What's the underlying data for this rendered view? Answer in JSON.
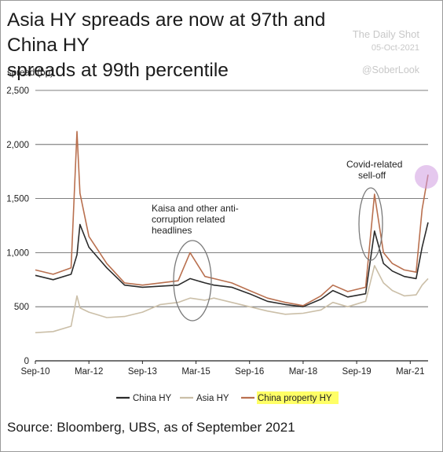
{
  "header": {
    "title_line1": "Asia HY spreads are now at 97th and China HY",
    "title_line2": "spreads at 99th percentile"
  },
  "watermark": {
    "line1": "The Daily Shot",
    "line2": "05-Oct-2021",
    "line3": "@SoberLook"
  },
  "footer": {
    "source": "Source: Bloomberg, UBS, as of September 2021"
  },
  "chart_data": {
    "type": "line",
    "ylabel": "spread (bp)",
    "ylim": [
      0,
      2500
    ],
    "y_ticks": [
      "0",
      "500",
      "1,000",
      "1,500",
      "2,000",
      "2,500"
    ],
    "y_tick_values": [
      0,
      500,
      1000,
      1500,
      2000,
      2500
    ],
    "x_tick_labels": [
      "Sep-10",
      "Mar-12",
      "Sep-13",
      "Mar-15",
      "Sep-16",
      "Mar-18",
      "Sep-19",
      "Mar-21"
    ],
    "grid": true,
    "legend_position": "bottom",
    "annotations": [
      {
        "lines": [
          "Kaisa and other anti-",
          "corruption related",
          "headlines"
        ]
      },
      {
        "lines": [
          "Covid-related",
          "sell-off"
        ]
      }
    ],
    "series": [
      {
        "name": "China HY",
        "color": "#2b2b2b",
        "x": [
          "2010-09",
          "2011-03",
          "2011-09",
          "2011-11",
          "2011-12",
          "2012-03",
          "2012-09",
          "2013-03",
          "2013-09",
          "2014-03",
          "2014-09",
          "2015-01",
          "2015-06",
          "2015-09",
          "2016-03",
          "2016-09",
          "2017-03",
          "2017-09",
          "2018-03",
          "2018-09",
          "2019-01",
          "2019-06",
          "2019-12",
          "2020-03",
          "2020-06",
          "2020-09",
          "2021-01",
          "2021-05",
          "2021-07",
          "2021-09"
        ],
        "values": [
          790,
          750,
          800,
          980,
          1260,
          1050,
          860,
          700,
          680,
          690,
          700,
          760,
          720,
          700,
          680,
          620,
          550,
          520,
          500,
          570,
          650,
          590,
          620,
          1200,
          900,
          830,
          780,
          760,
          1050,
          1280
        ]
      },
      {
        "name": "Asia HY",
        "color": "#cbbfa8",
        "x": [
          "2010-09",
          "2011-03",
          "2011-09",
          "2011-11",
          "2011-12",
          "2012-03",
          "2012-09",
          "2013-03",
          "2013-09",
          "2014-03",
          "2014-09",
          "2015-01",
          "2015-06",
          "2015-09",
          "2016-03",
          "2016-09",
          "2017-03",
          "2017-09",
          "2018-03",
          "2018-09",
          "2019-01",
          "2019-06",
          "2019-12",
          "2020-03",
          "2020-06",
          "2020-09",
          "2021-01",
          "2021-05",
          "2021-07",
          "2021-09"
        ],
        "values": [
          260,
          270,
          320,
          600,
          490,
          450,
          400,
          410,
          450,
          520,
          540,
          580,
          560,
          580,
          540,
          500,
          460,
          430,
          440,
          470,
          540,
          500,
          550,
          880,
          720,
          650,
          600,
          610,
          700,
          760
        ]
      },
      {
        "name": "China property HY",
        "color": "#b9704f",
        "x": [
          "2010-09",
          "2011-03",
          "2011-09",
          "2011-11",
          "2011-12",
          "2012-03",
          "2012-09",
          "2013-03",
          "2013-09",
          "2014-03",
          "2014-09",
          "2015-01",
          "2015-06",
          "2015-09",
          "2016-03",
          "2016-09",
          "2017-03",
          "2017-09",
          "2018-03",
          "2018-09",
          "2019-01",
          "2019-06",
          "2019-12",
          "2020-03",
          "2020-06",
          "2020-09",
          "2021-01",
          "2021-05",
          "2021-07",
          "2021-09"
        ],
        "values": [
          840,
          800,
          860,
          2120,
          1550,
          1150,
          900,
          720,
          700,
          720,
          740,
          1000,
          780,
          760,
          720,
          650,
          580,
          540,
          510,
          600,
          700,
          640,
          680,
          1540,
          1000,
          900,
          840,
          820,
          1400,
          1720
        ]
      }
    ]
  }
}
